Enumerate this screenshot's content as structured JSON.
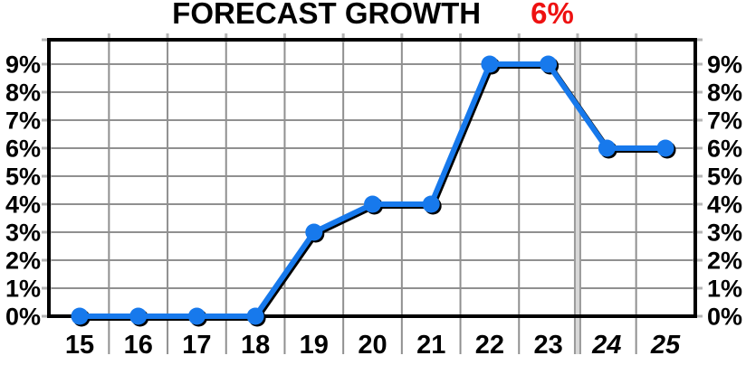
{
  "title": {
    "text": "FORECAST GROWTH",
    "highlight": "6%"
  },
  "chart_data": {
    "type": "line",
    "title": "FORECAST GROWTH",
    "title_highlight": "6%",
    "categories": [
      "15",
      "16",
      "17",
      "18",
      "19",
      "20",
      "21",
      "22",
      "23",
      "24",
      "25"
    ],
    "values": [
      0,
      0,
      0,
      0,
      3,
      4,
      4,
      9,
      9,
      6,
      6
    ],
    "italic_categories": [
      "24",
      "25"
    ],
    "y_tick_labels": [
      "0%",
      "1%",
      "2%",
      "3%",
      "4%",
      "5%",
      "6%",
      "7%",
      "8%",
      "9%"
    ],
    "y_ticks": [
      0,
      1,
      2,
      3,
      4,
      5,
      6,
      7,
      8,
      9
    ],
    "ylim": [
      0,
      9.9
    ],
    "xlabel": "",
    "ylabel": "",
    "grid": true,
    "y_axis_sides": [
      "left",
      "right"
    ],
    "legend": "none",
    "forecast_divider_after": "23",
    "colors": {
      "line": "#1779ec",
      "marker": "#1779ec",
      "line_shadow": "#000000",
      "grid": "#909090",
      "divider_outer": "#9a9a9a",
      "divider_inner": "#d8d8d8",
      "tick_nub": "#b4b4b4",
      "border": "#000000",
      "title": "#000000",
      "title_highlight": "#ee1111",
      "axis_label": "#000000",
      "background": "#ffffff"
    }
  }
}
